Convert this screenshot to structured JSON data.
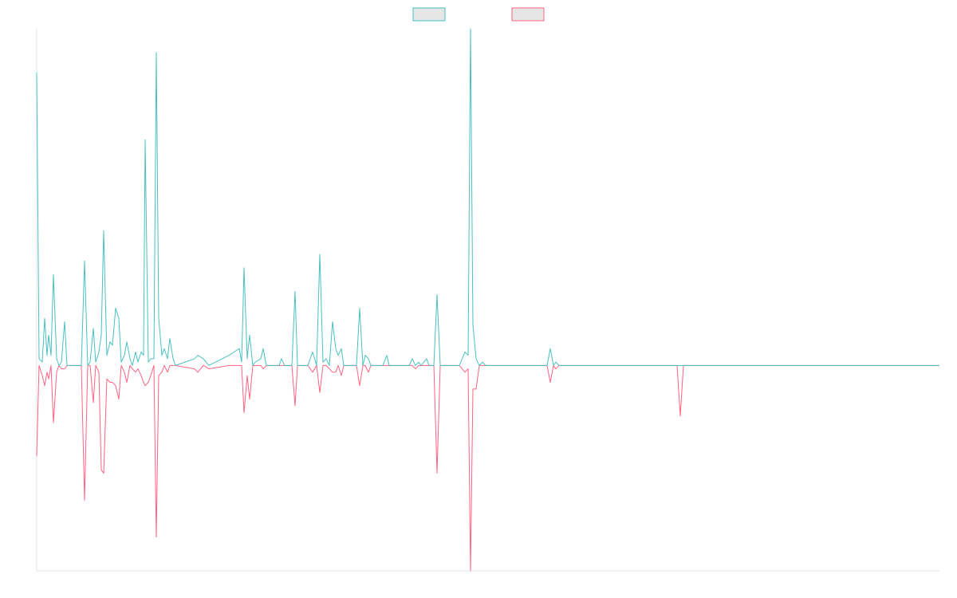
{
  "chart_data": {
    "type": "line",
    "x": [
      0,
      3,
      7,
      10,
      13,
      15,
      18,
      21,
      25,
      28,
      31,
      35,
      38,
      56,
      60,
      64,
      67,
      71,
      74,
      78,
      81,
      84,
      88,
      92,
      95,
      99,
      103,
      106,
      110,
      113,
      117,
      120,
      124,
      127,
      131,
      134,
      136,
      140,
      143,
      147,
      150,
      153,
      157,
      160,
      164,
      167,
      171,
      174,
      198,
      202,
      209,
      216,
      241,
      254,
      257,
      260,
      264,
      267,
      271,
      274,
      281,
      284,
      288,
      304,
      307,
      311,
      320,
      324,
      327,
      340,
      346,
      351,
      355,
      359,
      363,
      367,
      371,
      375,
      378,
      382,
      385,
      401,
      405,
      409,
      412,
      416,
      419,
      434,
      439,
      442,
      467,
      471,
      475,
      479,
      482,
      489,
      492,
      498,
      502,
      506,
      530,
      537,
      541,
      544,
      547,
      551,
      555,
      559,
      563,
      640,
      644,
      648,
      651,
      655,
      803,
      807,
      811,
      1132
    ],
    "series": [
      {
        "color": "#4bc0c0",
        "values": [
          87,
          2,
          1,
          14,
          3,
          9,
          3,
          27,
          2,
          0,
          1,
          13,
          0,
          0,
          31,
          0,
          1,
          11,
          1,
          4,
          9,
          40,
          3,
          7,
          6,
          17,
          14,
          1,
          3,
          7,
          2,
          0,
          4,
          1,
          4,
          3,
          67,
          1,
          2,
          2,
          93,
          14,
          3,
          5,
          2,
          8,
          2,
          0,
          2,
          3,
          2,
          0,
          3,
          5,
          1,
          29,
          2,
          9,
          0,
          1,
          2,
          5,
          0,
          0,
          2,
          0,
          0,
          22,
          0,
          0,
          4,
          0,
          33,
          1,
          2,
          0,
          13,
          5,
          3,
          5,
          0,
          0,
          17,
          0,
          3,
          2,
          0,
          0,
          3,
          0,
          0,
          2,
          0,
          1,
          0,
          2,
          0,
          0,
          21,
          0,
          0,
          4,
          3,
          100,
          12,
          2,
          0,
          1,
          0,
          0,
          5,
          0,
          1,
          0,
          0,
          0,
          0,
          0
        ]
      },
      {
        "color": "#ff6384",
        "values": [
          -27,
          0,
          -3,
          -6,
          -2,
          -4,
          0,
          -17,
          -2,
          0,
          -1,
          -1,
          0,
          0,
          -40,
          0,
          0,
          -11,
          0,
          -2,
          -31,
          -32,
          -4,
          -5,
          -5,
          -6,
          -10,
          0,
          -2,
          -5,
          0,
          -1,
          -2,
          -1,
          -3,
          -5,
          -6,
          -5,
          -3,
          0,
          -51,
          -3,
          -2,
          0,
          -2,
          0,
          0,
          0,
          -1,
          -2,
          0,
          -1,
          0,
          0,
          0,
          -14,
          -3,
          -10,
          0,
          0,
          0,
          -1,
          0,
          0,
          0,
          0,
          0,
          -12,
          0,
          0,
          -2,
          0,
          -8,
          0,
          0,
          -1,
          -2,
          -2,
          0,
          -3,
          0,
          0,
          -6,
          0,
          0,
          -2,
          0,
          0,
          0,
          0,
          0,
          0,
          -1,
          0,
          0,
          0,
          0,
          0,
          -32,
          0,
          0,
          -2,
          -1,
          -61,
          -7,
          -7,
          0,
          0,
          0,
          0,
          -5,
          0,
          -1,
          0,
          0,
          -15,
          0,
          0
        ]
      }
    ],
    "xlim": [
      0,
      1132
    ],
    "ylim": [
      -61,
      100
    ],
    "legend": "top"
  }
}
